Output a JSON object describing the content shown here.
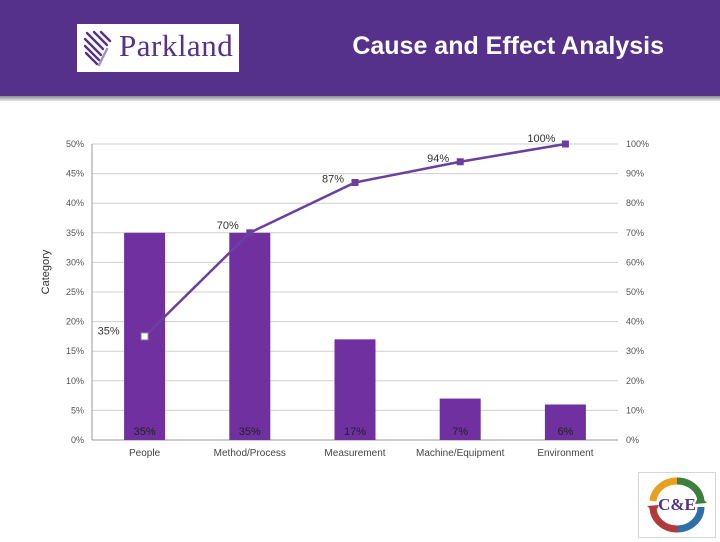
{
  "header": {
    "brand": "Parkland",
    "title": "Cause and Effect Analysis"
  },
  "colors": {
    "header_bg": "#55318c",
    "bar": "#7030a0",
    "line": "#6b3fa0"
  },
  "badge": {
    "text": "C&E"
  },
  "chart_data": {
    "type": "bar",
    "ylabel": "Category",
    "categories": [
      "People",
      "Method/Process",
      "Measurement",
      "Machine/Equipment",
      "Environment"
    ],
    "series": [
      {
        "values": [
          35,
          35,
          17,
          7,
          6
        ],
        "axis": "left"
      },
      {
        "values": [
          35,
          70,
          87,
          94,
          100
        ],
        "axis": "right",
        "type": "line"
      }
    ],
    "bar_labels": [
      "35%",
      "35%",
      "17%",
      "7%",
      "6%"
    ],
    "line_labels": [
      "35%",
      "70%",
      "87%",
      "94%",
      "100%"
    ],
    "ylim": [
      0,
      50
    ],
    "y2lim": [
      0,
      100
    ],
    "yticks": [
      "0%",
      "5%",
      "10%",
      "15%",
      "20%",
      "25%",
      "30%",
      "35%",
      "40%",
      "45%",
      "50%"
    ],
    "y2ticks": [
      "0%",
      "10%",
      "20%",
      "30%",
      "40%",
      "50%",
      "60%",
      "70%",
      "80%",
      "90%",
      "100%"
    ],
    "grid": true
  }
}
